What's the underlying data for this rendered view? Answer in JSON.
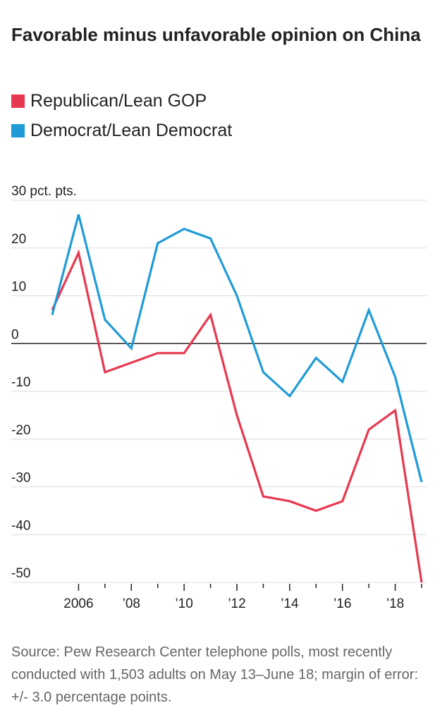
{
  "chart_data": {
    "type": "line",
    "title": "Favorable minus unfavorable opinion on China",
    "ylabel": "",
    "xlabel": "",
    "ylim": [
      -50,
      30
    ],
    "xlim": [
      2005,
      2019
    ],
    "y_ticks": [
      {
        "value": 30,
        "label": "30 pct. pts."
      },
      {
        "value": 20,
        "label": "20"
      },
      {
        "value": 10,
        "label": "10"
      },
      {
        "value": 0,
        "label": "0"
      },
      {
        "value": -10,
        "label": "-10"
      },
      {
        "value": -20,
        "label": "-20"
      },
      {
        "value": -30,
        "label": "-30"
      },
      {
        "value": -40,
        "label": "-40"
      },
      {
        "value": -50,
        "label": "-50"
      }
    ],
    "x_ticks": [
      {
        "value": 2006,
        "label": "2006"
      },
      {
        "value": 2008,
        "label": "’08"
      },
      {
        "value": 2010,
        "label": "’10"
      },
      {
        "value": 2012,
        "label": "’12"
      },
      {
        "value": 2014,
        "label": "’14"
      },
      {
        "value": 2016,
        "label": "’16"
      },
      {
        "value": 2018,
        "label": "’18"
      }
    ],
    "x": [
      2005,
      2006,
      2007,
      2008,
      2009,
      2010,
      2011,
      2012,
      2013,
      2014,
      2015,
      2016,
      2017,
      2018,
      2019
    ],
    "series": [
      {
        "name": "Republican/Lean GOP",
        "color": "#e8384f",
        "values": [
          7,
          19,
          -6,
          -4,
          -2,
          -2,
          6,
          -15,
          -32,
          -33,
          -35,
          -33,
          -18,
          -14,
          -50
        ]
      },
      {
        "name": "Democrat/Lean Democrat",
        "color": "#1f9bd7",
        "values": [
          6,
          27,
          5,
          -1,
          21,
          24,
          22,
          10,
          -6,
          -11,
          -3,
          -8,
          7,
          -7,
          -29
        ]
      }
    ],
    "grid": true,
    "legend_position": "top-left"
  },
  "source": "Source: Pew Research Center telephone polls, most recently conducted with 1,503 adults on May 13–June 18; margin of error: +/- 3.0 percentage points."
}
